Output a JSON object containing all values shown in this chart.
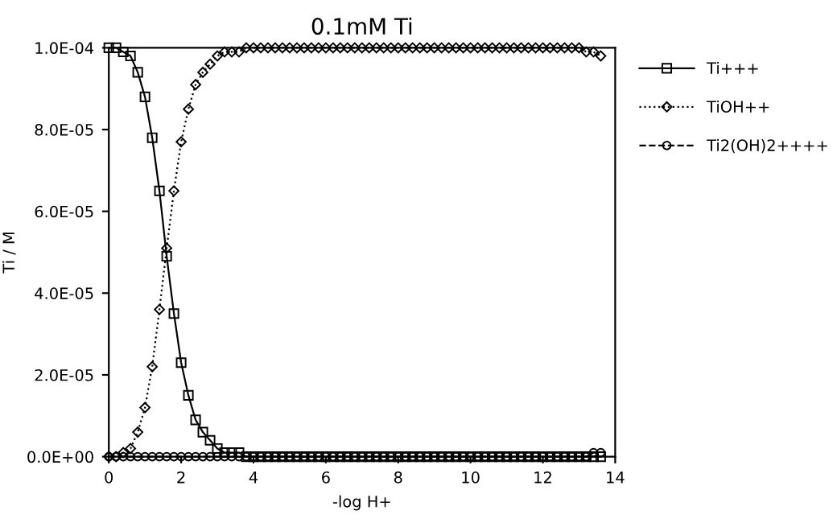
{
  "chart_data": {
    "type": "line",
    "title": "0.1mM Ti",
    "xlabel": "-log H+",
    "ylabel": "Ti / M",
    "x": [
      0,
      0.2,
      0.4,
      0.6,
      0.8,
      1.0,
      1.2,
      1.4,
      1.6,
      1.8,
      2.0,
      2.2,
      2.4,
      2.6,
      2.8,
      3.0,
      3.2,
      3.4,
      3.6,
      3.8,
      4.0,
      4.2,
      4.4,
      4.6,
      4.8,
      5.0,
      5.2,
      5.4,
      5.6,
      5.8,
      6.0,
      6.2,
      6.4,
      6.6,
      6.8,
      7.0,
      7.2,
      7.4,
      7.6,
      7.8,
      8.0,
      8.2,
      8.4,
      8.6,
      8.8,
      9.0,
      9.2,
      9.4,
      9.6,
      9.8,
      10.0,
      10.2,
      10.4,
      10.6,
      10.8,
      11.0,
      11.2,
      11.4,
      11.6,
      11.8,
      12.0,
      12.2,
      12.4,
      12.6,
      12.8,
      13.0,
      13.2,
      13.4,
      13.6
    ],
    "series": [
      {
        "name": "Ti+++",
        "color": "#000000",
        "marker": "square",
        "line_style": "solid",
        "values": [
          0.0001,
          0.0001,
          9.9e-05,
          9.8e-05,
          9.4e-05,
          8.8e-05,
          7.8e-05,
          6.5e-05,
          4.9e-05,
          3.5e-05,
          2.3e-05,
          1.5e-05,
          9e-06,
          6e-06,
          4e-06,
          2e-06,
          1e-06,
          1e-06,
          1e-06,
          0,
          0,
          0,
          0,
          0,
          0,
          0,
          0,
          0,
          0,
          0,
          0,
          0,
          0,
          0,
          0,
          0,
          0,
          0,
          0,
          0,
          0,
          0,
          0,
          0,
          0,
          0,
          0,
          0,
          0,
          0,
          0,
          0,
          0,
          0,
          0,
          0,
          0,
          0,
          0,
          0,
          0,
          0,
          0,
          0,
          0,
          0,
          0,
          0,
          0
        ]
      },
      {
        "name": "TiOH++",
        "color": "#000000",
        "marker": "diamond",
        "line_style": "dotted",
        "values": [
          0,
          0,
          1e-06,
          2e-06,
          6e-06,
          1.2e-05,
          2.2e-05,
          3.6e-05,
          5.1e-05,
          6.5e-05,
          7.7e-05,
          8.5e-05,
          9.1e-05,
          9.4e-05,
          9.6e-05,
          9.8e-05,
          9.9e-05,
          9.9e-05,
          9.9e-05,
          0.0001,
          0.0001,
          0.0001,
          0.0001,
          0.0001,
          0.0001,
          0.0001,
          0.0001,
          0.0001,
          0.0001,
          0.0001,
          0.0001,
          0.0001,
          0.0001,
          0.0001,
          0.0001,
          0.0001,
          0.0001,
          0.0001,
          0.0001,
          0.0001,
          0.0001,
          0.0001,
          0.0001,
          0.0001,
          0.0001,
          0.0001,
          0.0001,
          0.0001,
          0.0001,
          0.0001,
          0.0001,
          0.0001,
          0.0001,
          0.0001,
          0.0001,
          0.0001,
          0.0001,
          0.0001,
          0.0001,
          0.0001,
          0.0001,
          0.0001,
          0.0001,
          0.0001,
          0.0001,
          0.0001,
          9.9e-05,
          9.9e-05,
          9.8e-05
        ]
      },
      {
        "name": "Ti2(OH)2++++",
        "color": "#000000",
        "marker": "circle",
        "line_style": "dashed",
        "values": [
          0,
          0,
          0,
          0,
          0,
          0,
          0,
          0,
          0,
          0,
          0,
          0,
          0,
          0,
          0,
          0,
          0,
          0,
          0,
          0,
          0,
          0,
          0,
          0,
          0,
          0,
          0,
          0,
          0,
          0,
          0,
          0,
          0,
          0,
          0,
          0,
          0,
          0,
          0,
          0,
          0,
          0,
          0,
          0,
          0,
          0,
          0,
          0,
          0,
          0,
          0,
          0,
          0,
          0,
          0,
          0,
          0,
          0,
          0,
          0,
          0,
          0,
          0,
          0,
          0,
          0,
          0,
          1e-06,
          1e-06
        ]
      }
    ],
    "xlim": [
      0,
      14
    ],
    "xticks": [
      0,
      2,
      4,
      6,
      8,
      10,
      12,
      14
    ],
    "ylim": [
      0,
      0.0001
    ],
    "yticks": [
      {
        "value": 0,
        "label": "0.0E+00"
      },
      {
        "value": 2e-05,
        "label": "2.0E-05"
      },
      {
        "value": 4e-05,
        "label": "4.0E-05"
      },
      {
        "value": 6e-05,
        "label": "6.0E-05"
      },
      {
        "value": 8e-05,
        "label": "8.0E-05"
      },
      {
        "value": 0.0001,
        "label": "1.0E-04"
      }
    ],
    "grid": false,
    "legend": "right"
  }
}
